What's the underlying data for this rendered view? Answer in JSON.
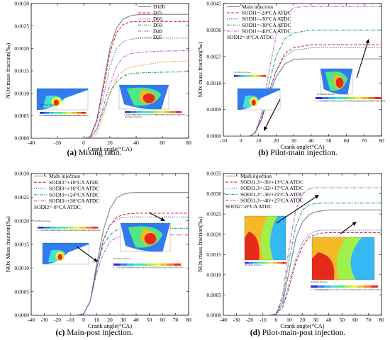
{
  "chart_data": [
    {
      "type": "line",
      "caption_letter": "(a)",
      "caption_text": " Mixing ratio.",
      "xlabel": "Crank angle(°CA)",
      "ylabel": "NOx mass fraction(‰)",
      "xlim": [
        -40,
        80
      ],
      "ylim": [
        0,
        0.003
      ],
      "xticks": [
        "-40",
        "-20",
        "0",
        "20",
        "40",
        "60",
        "80"
      ],
      "yticks": [
        "0.0000",
        "0.0005",
        "0.0010",
        "0.0015",
        "0.0020",
        "0.0025",
        "0.0030"
      ],
      "legend_position": "top-right",
      "series": [
        {
          "name": "D100",
          "color": "#808080",
          "dash": "solid",
          "x": [
            -40,
            0,
            5,
            10,
            15,
            20,
            25,
            30,
            35,
            40,
            50,
            60,
            80
          ],
          "y": [
            0,
            0,
            3e-05,
            0.0004,
            0.0012,
            0.002,
            0.00245,
            0.00265,
            0.00272,
            0.00275,
            0.00276,
            0.00276,
            0.00276
          ]
        },
        {
          "name": "D75",
          "color": "#e8202a",
          "dash": "dash",
          "x": [
            -40,
            0,
            5,
            10,
            15,
            20,
            25,
            30,
            35,
            40,
            50,
            60,
            80
          ],
          "y": [
            0,
            0,
            3e-05,
            0.0004,
            0.0011,
            0.0019,
            0.00235,
            0.00253,
            0.00259,
            0.0026,
            0.0026,
            0.0026,
            0.0026
          ]
        },
        {
          "name": "D60",
          "color": "#1a5fd1",
          "dash": "dot",
          "x": [
            -40,
            0,
            5,
            10,
            15,
            20,
            25,
            30,
            35,
            40,
            50,
            60,
            80
          ],
          "y": [
            0,
            0,
            3e-05,
            0.00035,
            0.0009,
            0.0016,
            0.002,
            0.00215,
            0.0022,
            0.00222,
            0.00223,
            0.00223,
            0.00223
          ]
        },
        {
          "name": "D50",
          "color": "#1a9d6a",
          "dash": "dashdot",
          "x": [
            -40,
            0,
            5,
            10,
            15,
            20,
            25,
            30,
            35,
            40,
            50,
            60,
            80
          ],
          "y": [
            0,
            0,
            2e-05,
            0.0002,
            0.0006,
            0.001,
            0.00125,
            0.00138,
            0.00143,
            0.00145,
            0.00146,
            0.00147,
            0.00148
          ]
        },
        {
          "name": "D40",
          "color": "#c34fd6",
          "dash": "dashdotdot",
          "x": [
            -40,
            0,
            5,
            10,
            15,
            20,
            25,
            30,
            35,
            40,
            50,
            60,
            80
          ],
          "y": [
            0,
            0,
            2e-05,
            0.0002,
            0.0007,
            0.0012,
            0.0016,
            0.0018,
            0.00188,
            0.0019,
            0.00193,
            0.00194,
            0.00195
          ]
        },
        {
          "name": "D25",
          "color": "#e8920a",
          "dash": "shortdot",
          "x": [
            -40,
            0,
            5,
            10,
            15,
            20,
            25,
            30,
            35,
            40,
            50,
            60,
            80
          ],
          "y": [
            0,
            0,
            1e-05,
            0.0001,
            0.0005,
            0.001,
            0.00135,
            0.0015,
            0.00157,
            0.0016,
            0.00165,
            0.0017,
            0.00172
          ]
        }
      ],
      "insets": [
        {
          "caption": "NO Mass Fraction",
          "ticks": [
            "0",
            "0.000210",
            "0.000421",
            "0.000631",
            "0.000842",
            "0.00105",
            "0.00126",
            "0.00147",
            "0.00168",
            "0.00189",
            "0.0021"
          ]
        },
        {
          "caption": "NO Mass Fraction",
          "ticks": [
            "0",
            "0.000375",
            "0.00075",
            "0.00112",
            "0.0015",
            "0.00187",
            "0.00225",
            "0.00262",
            "0.003",
            "0.00337",
            "0.00375"
          ]
        }
      ]
    },
    {
      "type": "line",
      "caption_letter": "(b)",
      "caption_text": " Pilot-main injection.",
      "xlabel": "Crank angle(°CA)",
      "ylabel": "NOx mass fraction(‰)",
      "xlim": [
        -10,
        80
      ],
      "ylim": [
        0,
        0.0045
      ],
      "xticks": [
        "-10",
        "0",
        "10",
        "20",
        "30",
        "40",
        "50",
        "60",
        "70",
        "80"
      ],
      "yticks": [
        "0.0000",
        "0.0009",
        "0.0018",
        "0.0027",
        "0.0036",
        "0.0045"
      ],
      "legend_position": "top-left",
      "legend_note": "SODI2=-8°CA ATDC",
      "series": [
        {
          "name": "Main injection",
          "color": "#808080",
          "dash": "solid",
          "x": [
            -10,
            0,
            5,
            8,
            12,
            16,
            20,
            25,
            30,
            35,
            40,
            50,
            60,
            80
          ],
          "y": [
            0,
            0,
            0,
            0.0001,
            0.0006,
            0.0014,
            0.002,
            0.00245,
            0.0026,
            0.00262,
            0.00262,
            0.00262,
            0.00262,
            0.00262
          ]
        },
        {
          "name": "SODI1=-24°CA ATDC",
          "color": "#e8202a",
          "dash": "dash",
          "x": [
            -10,
            0,
            5,
            8,
            12,
            16,
            20,
            25,
            30,
            35,
            40,
            50,
            60,
            80
          ],
          "y": [
            0,
            0,
            0,
            0.0001,
            0.0006,
            0.0015,
            0.0022,
            0.0028,
            0.003,
            0.00305,
            0.0031,
            0.0031,
            0.0031,
            0.0031
          ]
        },
        {
          "name": "SODI1=-30°CA ATDC",
          "color": "#1a5fd1",
          "dash": "dot",
          "x": [
            -10,
            0,
            5,
            8,
            12,
            16,
            20,
            25,
            30,
            35,
            40,
            50,
            60,
            80
          ],
          "y": [
            0,
            0,
            0,
            0.0001,
            0.0006,
            0.0015,
            0.0022,
            0.0027,
            0.0029,
            0.00295,
            0.003,
            0.003,
            0.003,
            0.003
          ]
        },
        {
          "name": "SODI1=-38°CA ATDC",
          "color": "#1a9d6a",
          "dash": "dashdot",
          "x": [
            -10,
            0,
            5,
            8,
            12,
            16,
            20,
            25,
            30,
            35,
            40,
            50,
            60,
            80
          ],
          "y": [
            0,
            0,
            0,
            0.0001,
            0.0007,
            0.0018,
            0.0027,
            0.0033,
            0.0035,
            0.00355,
            0.0036,
            0.0036,
            0.0036,
            0.0036
          ]
        },
        {
          "name": "SODI1=-40°CA ATDC",
          "color": "#c34fd6",
          "dash": "dashdotdot",
          "x": [
            -10,
            0,
            5,
            8,
            12,
            16,
            20,
            25,
            30,
            35,
            40,
            50,
            60,
            80
          ],
          "y": [
            0,
            0,
            0,
            0.0001,
            0.0008,
            0.0022,
            0.0034,
            0.0041,
            0.00435,
            0.0044,
            0.0044,
            0.0044,
            0.0044,
            0.0044
          ]
        }
      ],
      "insets": [
        {
          "caption": "NO Mass Fraction",
          "ticks": []
        },
        {
          "caption": "NO Mass Fraction",
          "ticks": [
            "0",
            "0.000436",
            "0.000872",
            "0.00131",
            "0.00174",
            "0.00218",
            "0.00262",
            "0.00305",
            "0.00349",
            "0.00392",
            "0.00436"
          ]
        }
      ]
    },
    {
      "type": "line",
      "caption_letter": "(c)",
      "caption_text": " Main-post injection.",
      "xlabel": "Crank angle(°CA)",
      "ylabel": "NOx Mass fraction(‰)",
      "xlim": [
        -40,
        80
      ],
      "ylim": [
        0,
        0.003
      ],
      "xticks": [
        "-40",
        "-30",
        "-20",
        "-10",
        "0",
        "10",
        "20",
        "30",
        "40",
        "50",
        "60",
        "70",
        "80"
      ],
      "yticks": [
        "0.0000",
        "0.0005",
        "0.0010",
        "0.0015",
        "0.0020",
        "0.0025",
        "0.0030"
      ],
      "legend_position": "top-left",
      "legend_note": "SODI2=-8°CA ATDC",
      "series": [
        {
          "name": "Main injection",
          "color": "#808080",
          "dash": "solid",
          "x": [
            -40,
            -5,
            0,
            5,
            10,
            15,
            20,
            25,
            30,
            35,
            40,
            50,
            60,
            80
          ],
          "y": [
            0,
            0,
            3e-05,
            0.0003,
            0.0011,
            0.0018,
            0.00225,
            0.00248,
            0.00256,
            0.00259,
            0.0026,
            0.0026,
            0.0026,
            0.0026
          ]
        },
        {
          "name": "SODI3=+10°CA ATDC",
          "color": "#e8202a",
          "dash": "dash",
          "x": [
            -40,
            -5,
            0,
            5,
            10,
            15,
            20,
            25,
            30,
            35,
            40,
            50,
            60,
            80
          ],
          "y": [
            0,
            0,
            3e-05,
            0.0003,
            0.001,
            0.0016,
            0.0019,
            0.00207,
            0.00213,
            0.00215,
            0.00216,
            0.00216,
            0.00216,
            0.00216
          ]
        },
        {
          "name": "SODI3=+16°CA ATDC",
          "color": "#1a5fd1",
          "dash": "dot",
          "x": [
            -40,
            -5,
            0,
            5,
            10,
            15,
            20,
            25,
            30,
            35,
            40,
            50,
            60,
            80
          ],
          "y": [
            0,
            0,
            3e-05,
            0.0003,
            0.001,
            0.0016,
            0.0019,
            0.00203,
            0.00207,
            0.00208,
            0.00208,
            0.00208,
            0.00208,
            0.00208
          ]
        },
        {
          "name": "SODI3=+24°CA ATDC",
          "color": "#1a9d6a",
          "dash": "dashdot",
          "x": [
            -40,
            -5,
            0,
            5,
            10,
            15,
            20,
            25,
            30,
            35,
            40,
            50,
            60,
            80
          ],
          "y": [
            0,
            0,
            3e-05,
            0.0003,
            0.001,
            0.0015,
            0.0017,
            0.0018,
            0.00183,
            0.00184,
            0.00184,
            0.00184,
            0.00184,
            0.00184
          ]
        },
        {
          "name": "SODI3=+30°CA ATDC",
          "color": "#c34fd6",
          "dash": "dashdotdot",
          "x": [
            -40,
            -5,
            0,
            5,
            10,
            15,
            20,
            25,
            30,
            35,
            40,
            50,
            60,
            80
          ],
          "y": [
            0,
            0,
            3e-05,
            0.0003,
            0.0009,
            0.0013,
            0.00155,
            0.00165,
            0.00168,
            0.00169,
            0.0017,
            0.0017,
            0.0017,
            0.0017
          ]
        }
      ],
      "insets": [
        {
          "caption": "NO Mass Fraction",
          "ticks": [
            "0",
            "0.000311",
            "0.000622",
            "0.000933",
            "0.00124",
            "0.00156",
            "0.00187",
            "0.00218",
            "0.00249",
            "0.0028",
            "0.00311"
          ]
        },
        {
          "caption": "NO Mass Fraction",
          "ticks": [
            "0",
            "0.000311",
            "0.000622",
            "0.000933",
            "0.00124",
            "0.00156",
            "0.00187",
            "0.00218",
            "0.00249",
            "0.0028",
            "0.00311"
          ]
        }
      ]
    },
    {
      "type": "line",
      "caption_letter": "(d)",
      "caption_text": " Pilot-main-post injection.",
      "xlabel": "Crank angle(°CA)",
      "ylabel": "NOx mass fraction(‰)",
      "xlim": [
        -40,
        80
      ],
      "ylim": [
        0,
        0.0035
      ],
      "xticks": [
        "-40",
        "-30",
        "-20",
        "-10",
        "0",
        "10",
        "20",
        "30",
        "40",
        "50",
        "60",
        "70",
        "80"
      ],
      "yticks": [
        "0.0000",
        "0.0005",
        "0.0010",
        "0.0015",
        "0.0020",
        "0.0025",
        "0.0030",
        "0.0035"
      ],
      "legend_position": "top-left",
      "legend_note": "SODI2=-8°CA ATDC",
      "series": [
        {
          "name": "Main injection",
          "color": "#808080",
          "dash": "solid",
          "x": [
            -40,
            -5,
            0,
            5,
            10,
            15,
            20,
            25,
            30,
            35,
            40,
            50,
            60,
            80
          ],
          "y": [
            0,
            0,
            3e-05,
            0.0003,
            0.0011,
            0.0019,
            0.0023,
            0.00248,
            0.00255,
            0.00258,
            0.0026,
            0.0026,
            0.0026,
            0.0026
          ]
        },
        {
          "name": "SODI1,3=-30/+13°CA ATDC",
          "color": "#e8202a",
          "dash": "dash",
          "x": [
            -40,
            -5,
            0,
            5,
            10,
            15,
            20,
            25,
            30,
            35,
            40,
            50,
            60,
            80
          ],
          "y": [
            0,
            0,
            3e-05,
            0.0002,
            0.0007,
            0.0013,
            0.0017,
            0.00192,
            0.002,
            0.00203,
            0.00204,
            0.00204,
            0.00204,
            0.00204
          ]
        },
        {
          "name": "SODI1,3=-32/+17°CA ATDC",
          "color": "#1a5fd1",
          "dash": "dot",
          "x": [
            -40,
            -5,
            0,
            5,
            10,
            15,
            20,
            25,
            30,
            35,
            40,
            50,
            60,
            80
          ],
          "y": [
            0,
            0,
            3e-05,
            0.0002,
            0.0008,
            0.0014,
            0.0018,
            0.002,
            0.00208,
            0.0021,
            0.0021,
            0.0021,
            0.0021,
            0.0021
          ]
        },
        {
          "name": "SODI1,3=-36/+21°CA ATDC",
          "color": "#1a9d6a",
          "dash": "dashdot",
          "x": [
            -40,
            -5,
            0,
            5,
            10,
            15,
            20,
            25,
            30,
            35,
            40,
            50,
            60,
            80
          ],
          "y": [
            0,
            0,
            3e-05,
            0.0004,
            0.0014,
            0.0022,
            0.0026,
            0.00272,
            0.00276,
            0.00277,
            0.00277,
            0.00277,
            0.00277,
            0.00277
          ]
        },
        {
          "name": "SODI1,3=-40/+25°CA ATDC",
          "color": "#c34fd6",
          "dash": "dashdotdot",
          "x": [
            -40,
            -5,
            0,
            5,
            10,
            15,
            20,
            25,
            30,
            35,
            40,
            50,
            60,
            80
          ],
          "y": [
            0,
            0,
            3e-05,
            0.0005,
            0.0017,
            0.0026,
            0.003,
            0.00312,
            0.00315,
            0.00315,
            0.00315,
            0.00315,
            0.00315,
            0.00315
          ]
        }
      ],
      "insets": [
        {
          "caption": "NO Mass Fraction",
          "ticks": []
        },
        {
          "caption": "NO Mass Fraction",
          "ticks": [
            "0",
            "0.000400",
            "0.000800",
            "0.0012",
            "0.0016",
            "0.002",
            "0.0024",
            "0.0028",
            "0.0032",
            "0.0036",
            "0.004"
          ]
        }
      ]
    }
  ]
}
